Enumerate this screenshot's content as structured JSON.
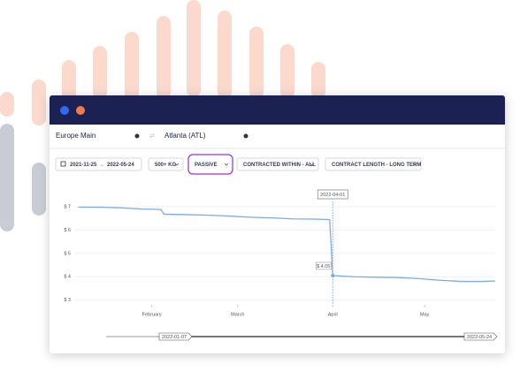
{
  "window": {
    "origin": "Europe Main",
    "destination": "Atlanta (ATL)",
    "date_from": "2021-11-25",
    "date_to": "2022-05-24",
    "filters": [
      "500+ KG",
      "PASSIVE",
      "CONTRACTED WITHIN - ALL",
      "CONTRACT LENGTH - LONG TERM"
    ]
  },
  "chart_data": {
    "type": "line",
    "x": [
      "2022-01-08",
      "2022-01-15",
      "2022-01-22",
      "2022-01-29",
      "2022-02-04",
      "2022-02-05",
      "2022-02-12",
      "2022-02-19",
      "2022-02-26",
      "2022-03-05",
      "2022-03-12",
      "2022-03-19",
      "2022-03-26",
      "2022-03-31",
      "2022-04-01",
      "2022-04-08",
      "2022-04-15",
      "2022-04-22",
      "2022-04-29",
      "2022-05-06",
      "2022-05-13",
      "2022-05-20",
      "2022-05-24"
    ],
    "series": [
      {
        "color": "#7ea8ee",
        "values": [
          6.98,
          6.98,
          6.95,
          6.9,
          6.88,
          6.68,
          6.66,
          6.64,
          6.6,
          6.55,
          6.52,
          6.48,
          6.47,
          6.45,
          4.05,
          4.0,
          3.98,
          3.97,
          3.92,
          3.85,
          3.8,
          3.8,
          3.82
        ],
        "value_labels": [
          null,
          null,
          null,
          null,
          null,
          null,
          null,
          null,
          null,
          null,
          null,
          null,
          null,
          null,
          "$ 4.05",
          null,
          null,
          null,
          null,
          null,
          null,
          null,
          null
        ]
      }
    ],
    "xlim": [
      "2022-01-07",
      "2022-05-24"
    ],
    "xticks": [
      {
        "value": "2022-02-01",
        "label": "February"
      },
      {
        "value": "2022-03-01",
        "label": "March"
      },
      {
        "value": "2022-04-01",
        "label": "April"
      },
      {
        "value": "2022-05-01",
        "label": "May"
      }
    ],
    "ylim": [
      2.8,
      7.15
    ],
    "yticks": [
      {
        "value": 3,
        "label": "$ 3"
      },
      {
        "value": 4,
        "label": "$ 4"
      },
      {
        "value": 5,
        "label": "$ 5"
      },
      {
        "value": 6,
        "label": "$ 6"
      },
      {
        "value": 7,
        "label": "$ 7"
      }
    ],
    "grid": true,
    "highlight_index": 14
  }
}
